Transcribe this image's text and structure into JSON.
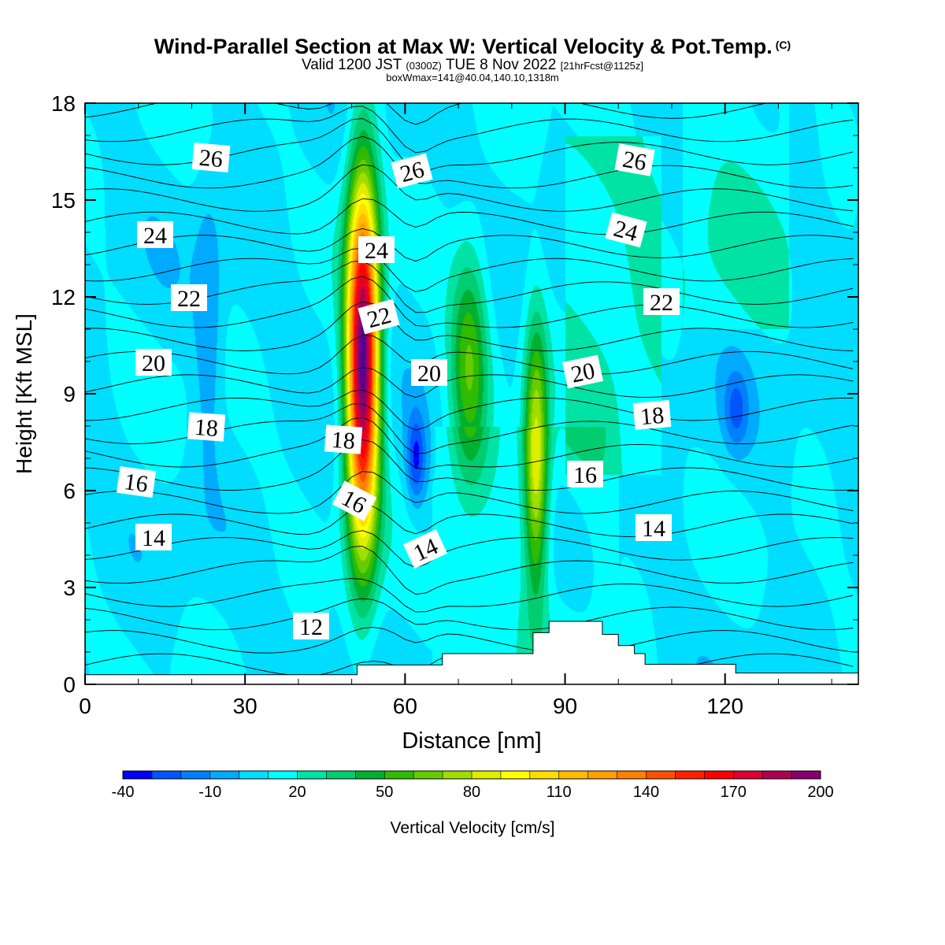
{
  "title": {
    "main": "Wind-Parallel Section at Max W: Vertical Velocity & Pot.Temp.",
    "copyright": "(C)",
    "valid_prefix": "Valid 1200 JST",
    "utc": "(0300Z)",
    "valid_date": "TUE 8 Nov 2022",
    "forecast": "[21hrFcst@1125z]",
    "box": "boxWmax=141@40.04,140.10,1318m"
  },
  "chart_data": {
    "type": "heatmap",
    "xlabel": "Distance [nm]",
    "ylabel": "Height [Kft MSL]",
    "xlim": [
      0,
      145
    ],
    "ylim": [
      0,
      18
    ],
    "xticks": [
      "0",
      "30",
      "60",
      "90",
      "120"
    ],
    "yticks": [
      "0",
      "3",
      "6",
      "9",
      "12",
      "15",
      "18"
    ],
    "colorbar": {
      "label": "Vertical Velocity [cm/s]",
      "tick_labels": [
        "-40",
        "-10",
        "20",
        "50",
        "80",
        "110",
        "140",
        "170",
        "200"
      ],
      "levels": [
        -40,
        -30,
        -20,
        -10,
        0,
        10,
        20,
        30,
        40,
        50,
        60,
        70,
        80,
        90,
        100,
        110,
        120,
        130,
        140,
        150,
        160,
        170,
        180,
        190,
        200
      ],
      "colors": [
        "#0000ff",
        "#0055ff",
        "#0080ff",
        "#00aaff",
        "#00ddff",
        "#00ffff",
        "#00e3a5",
        "#00cc70",
        "#00b030",
        "#30bb00",
        "#66cc00",
        "#a0dd00",
        "#ddee00",
        "#ffff00",
        "#ffdd00",
        "#ffbb00",
        "#ffa000",
        "#ff8000",
        "#ff5000",
        "#ff2000",
        "#ff0000",
        "#dd0030",
        "#b00050",
        "#880070",
        "#550090"
      ]
    },
    "wind_features": [
      {
        "name": "main-updraft",
        "x": 52,
        "z": 10,
        "sx": 3,
        "sz": 5.6,
        "max": 200
      },
      {
        "name": "updraft-2",
        "x": 72,
        "z": 10,
        "sx": 3.5,
        "sz": 3.5,
        "max": 50
      },
      {
        "name": "updraft-3",
        "x": 84.5,
        "z": 7,
        "sx": 2.2,
        "sz": 4,
        "max": 78
      },
      {
        "name": "downdraft-1",
        "x": 62,
        "z": 7,
        "sx": 1.8,
        "sz": 1.4,
        "max": -38
      },
      {
        "name": "downdraft-2",
        "x": 122,
        "z": 8.5,
        "sx": 2.3,
        "sz": 1.2,
        "max": -25
      },
      {
        "name": "downdraft-3",
        "x": 23,
        "z": 11,
        "sx": 2.5,
        "sz": 4,
        "max": -18
      }
    ],
    "terrain": [
      [
        0,
        0.3
      ],
      [
        51,
        0.3
      ],
      [
        51,
        0.6
      ],
      [
        67,
        0.6
      ],
      [
        67,
        0.95
      ],
      [
        84,
        0.95
      ],
      [
        84,
        1.6
      ],
      [
        87,
        1.6
      ],
      [
        87,
        1.95
      ],
      [
        97,
        1.95
      ],
      [
        97,
        1.55
      ],
      [
        100,
        1.55
      ],
      [
        100,
        1.2
      ],
      [
        103,
        1.2
      ],
      [
        103,
        0.95
      ],
      [
        105,
        0.95
      ],
      [
        105,
        0.62
      ],
      [
        122,
        0.62
      ],
      [
        122,
        0.35
      ],
      [
        145,
        0.35
      ]
    ],
    "contour_labels": [
      "12",
      "14",
      "14",
      "14",
      "16",
      "16",
      "16",
      "18",
      "18",
      "18",
      "20",
      "20",
      "20",
      "22",
      "22",
      "22",
      "24",
      "24",
      "24",
      "26",
      "26",
      "26"
    ]
  }
}
